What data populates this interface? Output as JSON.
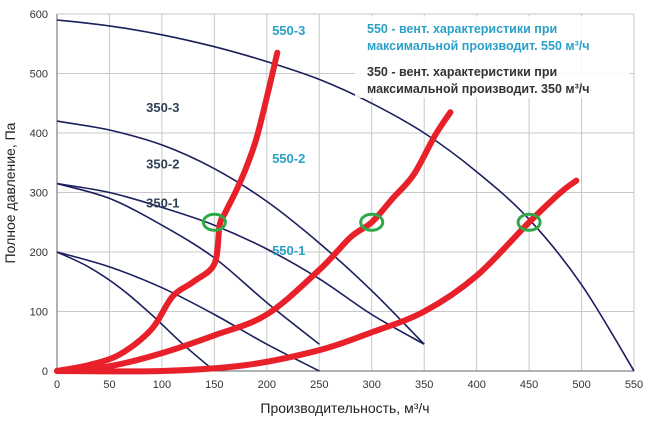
{
  "chart_data": {
    "type": "line",
    "xlabel": "Производительность, м³/ч",
    "ylabel": "Полное давление, Па",
    "xlim": [
      0,
      550
    ],
    "ylim": [
      0,
      600
    ],
    "x_ticks": [
      "0",
      "50",
      "100",
      "150",
      "200",
      "250",
      "300",
      "350",
      "400",
      "450",
      "500",
      "550"
    ],
    "y_ticks": [
      "0",
      "100",
      "200",
      "300",
      "400",
      "500",
      "600"
    ],
    "grid": true,
    "fan_curves": [
      {
        "name": "350-1",
        "color": "#1a1f5e",
        "x": [
          0,
          30,
          60,
          90,
          120,
          150
        ],
        "y": [
          200,
          175,
          140,
          95,
          45,
          0
        ]
      },
      {
        "name": "350-2",
        "color": "#1a1f5e",
        "x": [
          0,
          50,
          100,
          150,
          200,
          250
        ],
        "y": [
          315,
          290,
          245,
          190,
          115,
          45
        ]
      },
      {
        "name": "350-3",
        "color": "#1a1f5e",
        "x": [
          0,
          50,
          100,
          150,
          200,
          250,
          300,
          350
        ],
        "y": [
          420,
          405,
          380,
          340,
          285,
          215,
          135,
          45
        ]
      },
      {
        "name": "550-1",
        "color": "#1a1f5e",
        "x": [
          0,
          50,
          100,
          150,
          200,
          250
        ],
        "y": [
          200,
          175,
          140,
          95,
          45,
          0
        ]
      },
      {
        "name": "550-2",
        "color": "#1a1f5e",
        "x": [
          0,
          50,
          100,
          150,
          200,
          250,
          300,
          350
        ],
        "y": [
          315,
          300,
          275,
          245,
          205,
          155,
          95,
          45
        ]
      },
      {
        "name": "550-3",
        "color": "#1a1f5e",
        "x": [
          0,
          50,
          100,
          150,
          200,
          250,
          300,
          350,
          400,
          450,
          500,
          550
        ],
        "y": [
          590,
          580,
          565,
          545,
          520,
          490,
          450,
          400,
          335,
          255,
          145,
          0
        ]
      }
    ],
    "duct_curves": [
      {
        "color": "#e8202a",
        "x": [
          0,
          30,
          60,
          90,
          110,
          130,
          150,
          155,
          160,
          170,
          180,
          190,
          200,
          210
        ],
        "y": [
          0,
          10,
          28,
          70,
          125,
          150,
          180,
          245,
          265,
          300,
          340,
          390,
          460,
          535
        ]
      },
      {
        "color": "#e8202a",
        "x": [
          0,
          50,
          100,
          150,
          200,
          250,
          280,
          300,
          320,
          340,
          360,
          375
        ],
        "y": [
          0,
          8,
          30,
          60,
          95,
          170,
          225,
          250,
          290,
          330,
          395,
          435
        ]
      },
      {
        "color": "#e8202a",
        "x": [
          0,
          100,
          180,
          250,
          300,
          350,
          400,
          450,
          480,
          495
        ],
        "y": [
          0,
          0,
          10,
          35,
          65,
          100,
          160,
          250,
          300,
          320
        ]
      }
    ],
    "operating_points": [
      {
        "x": 150,
        "y": 250
      },
      {
        "x": 300,
        "y": 250
      },
      {
        "x": 450,
        "y": 250
      }
    ],
    "legend": {
      "line1": "550 - вент. характеристики при",
      "line2": "максимальной производит. 550 м³/ч",
      "line3": "350 - вент. характеристики при",
      "line4": "максимальной производит. 350 м³/ч",
      "color550": "#2aa0c9",
      "color350": "#333333"
    },
    "label_colors": {
      "350": "#2f3f55",
      "550": "#2aa0c9"
    }
  }
}
